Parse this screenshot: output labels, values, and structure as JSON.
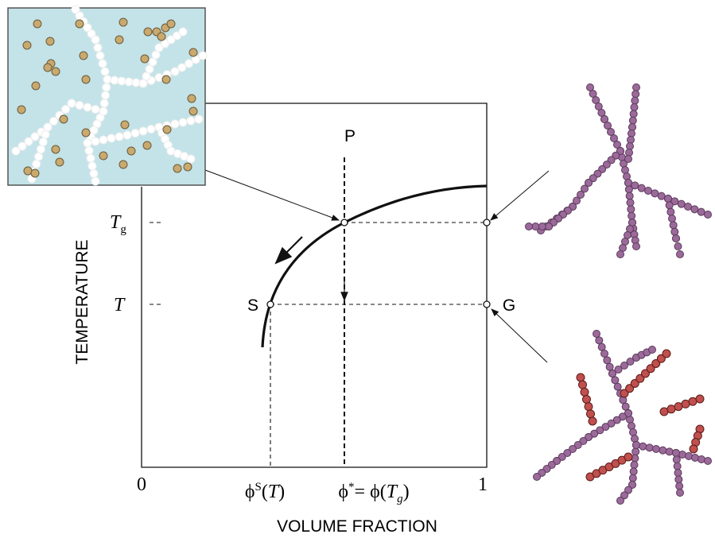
{
  "points": {
    "p": "P",
    "s": "S",
    "g": "G"
  },
  "y_axis": {
    "title": "TEMPERATURE",
    "ticks": [
      {
        "symbol": "T",
        "subscript": "g"
      },
      {
        "symbol": "T"
      }
    ]
  },
  "x_axis": {
    "title": "VOLUME FRACTION",
    "ticks": [
      {
        "text": "0"
      },
      {
        "phi": "ϕ",
        "sup": "S",
        "open": "(",
        "arg": "T",
        "close": ")"
      },
      {
        "phi": "ϕ",
        "sup": "*",
        "mid": "= ϕ(",
        "arg": "T",
        "sub": "g",
        "close": ")"
      },
      {
        "text": "1"
      }
    ]
  }
}
